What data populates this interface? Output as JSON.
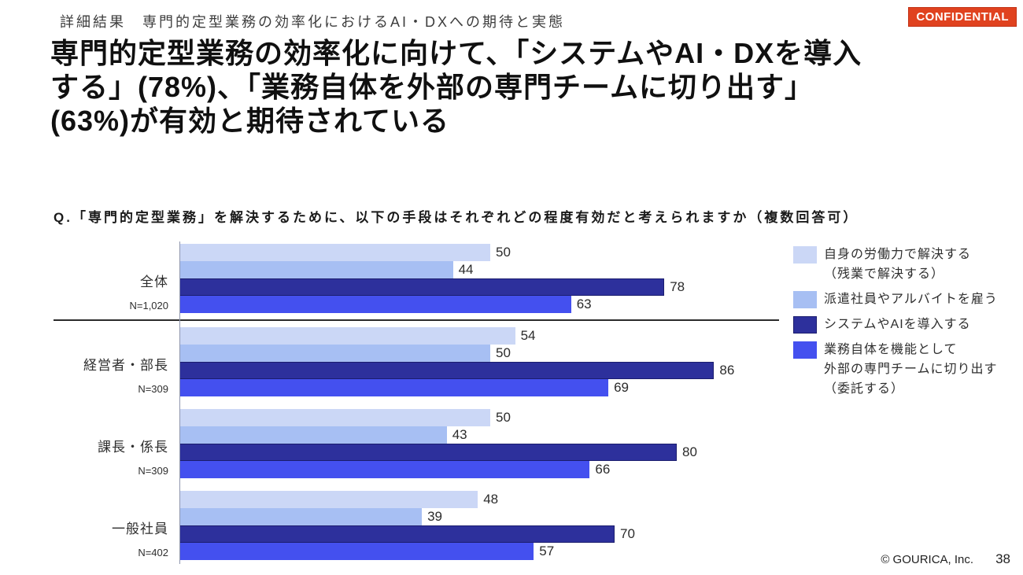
{
  "slide": {
    "eyebrow": "詳細結果　専門的定型業務の効率化におけるAI・DXへの期待と実態",
    "confidential_badge": "CONFIDENTIAL",
    "title_lines": [
      "専門的定型業務の効率化に向けて、「システムやAI・DXを導入",
      "する」(78%)、「業務自体を外部の専門チームに切り出す」",
      "(63%)が有効と期待されている"
    ],
    "question": "Q.「専門的定型業務」を解決するために、以下の手段はそれぞれどの程度有効だと考えられますか（複数回答可）",
    "footer": {
      "copyright": "© GOURICA, Inc.",
      "page_number": "38"
    }
  },
  "colors": {
    "confidential_bg": "#e0421f",
    "confidential_border": "#c23317",
    "separator": "#2b2b2b",
    "axis": "#8f96ad"
  },
  "legend": {
    "items": [
      {
        "lines": [
          "自身の労働力で解決する",
          "（残業で解決する）"
        ],
        "color": "#cbd7f6"
      },
      {
        "lines": [
          "派遣社員やアルバイトを雇う"
        ],
        "color": "#a7bff3"
      },
      {
        "lines": [
          "システムやAIを導入する"
        ],
        "color": "#2d309c",
        "border": "#1b1d6e"
      },
      {
        "lines": [
          "業務自体を機能として",
          "外部の専門チームに切り出す",
          "（委託する）"
        ],
        "color": "#4450ef"
      }
    ]
  },
  "chart_data": {
    "type": "bar",
    "orientation": "horizontal",
    "title": "Q.「専門的定型業務」を解決するために、以下の手段はそれぞれどの程度有効だと考えられますか（複数回答可）",
    "value_axis_max": 100,
    "value_unit": "%",
    "grid": false,
    "legend_position": "right",
    "categories": [
      "全体",
      "経営者・部長",
      "課長・係長",
      "一般社員"
    ],
    "category_n": [
      "N=1,020",
      "N=309",
      "N=309",
      "N=402"
    ],
    "series": [
      {
        "name": "自身の労働力で解決する（残業で解決する）",
        "color": "#cbd7f6",
        "values": [
          50,
          54,
          50,
          48
        ]
      },
      {
        "name": "派遣社員やアルバイトを雇う",
        "color": "#a7bff3",
        "values": [
          44,
          50,
          43,
          39
        ]
      },
      {
        "name": "システムやAIを導入する",
        "color": "#2d309c",
        "border": "#1b1d6e",
        "values": [
          78,
          86,
          80,
          70
        ]
      },
      {
        "name": "業務自体を機能として外部の専門チームに切り出す（委託する）",
        "color": "#4450ef",
        "values": [
          63,
          69,
          66,
          57
        ]
      }
    ]
  }
}
